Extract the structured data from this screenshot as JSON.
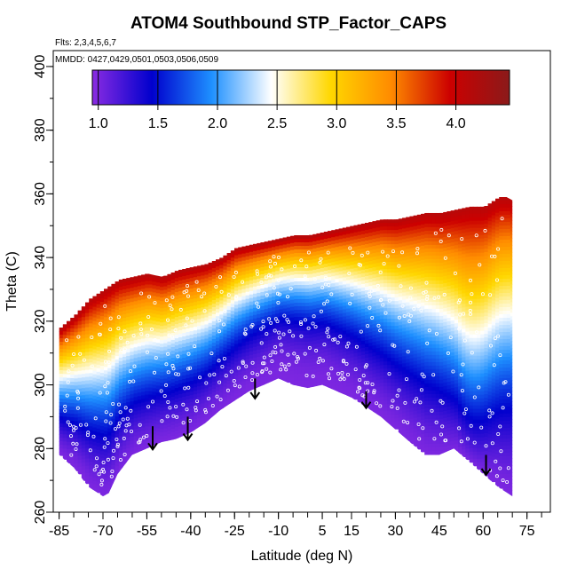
{
  "chart_data": {
    "type": "heatmap",
    "title": "ATOM4 Southbound STP_Factor_CAPS",
    "subtitle_flights": "Flts: 2,3,4,5,6,7",
    "subtitle_dates": "MMDD: 0427,0429,0501,0503,0506,0509",
    "xlabel": "Latitude (deg N)",
    "ylabel": "Theta (C)",
    "xlim": [
      -87,
      83
    ],
    "ylim": [
      260,
      405
    ],
    "x_ticks": [
      -85,
      -70,
      -55,
      -40,
      -25,
      -10,
      5,
      15,
      30,
      45,
      60,
      75
    ],
    "x_tick_labels": [
      "-85",
      "-70",
      "-55",
      "-40",
      "-25",
      "-10",
      "5",
      "15",
      "30",
      "45",
      "60",
      "75"
    ],
    "y_ticks": [
      260,
      280,
      300,
      320,
      340,
      360,
      380,
      400
    ],
    "y_tick_labels": [
      "260",
      "280",
      "300",
      "320",
      "340",
      "360",
      "380",
      "400"
    ],
    "colorbar": {
      "range": [
        0.95,
        4.45
      ],
      "tick_values": [
        1.0,
        1.5,
        2.0,
        2.5,
        3.0,
        3.5,
        4.0
      ],
      "tick_labels": [
        "1.0",
        "1.5",
        "2.0",
        "2.5",
        "3.0",
        "3.5",
        "4.0"
      ],
      "colors": [
        "#8a2be2",
        "#0000cd",
        "#1e90ff",
        "#ffffff",
        "#ffd700",
        "#ff8c00",
        "#cc0000",
        "#8b1a1a"
      ]
    },
    "field_bottom_boundary": {
      "lat": [
        -85,
        -80,
        -75,
        -70,
        -68,
        -65,
        -60,
        -55,
        -50,
        -45,
        -40,
        -35,
        -30,
        -25,
        -20,
        -15,
        -10,
        -5,
        0,
        5,
        10,
        15,
        20,
        25,
        30,
        35,
        40,
        45,
        50,
        55,
        60,
        65,
        70,
        72
      ],
      "theta": [
        278,
        274,
        268,
        265,
        266,
        272,
        278,
        280,
        282,
        283,
        285,
        288,
        292,
        295,
        298,
        300,
        302,
        300,
        299,
        300,
        298,
        296,
        293,
        290,
        286,
        282,
        278,
        278,
        280,
        276,
        272,
        268,
        265,
        264
      ]
    },
    "field_top_boundary": {
      "lat": [
        -85,
        -80,
        -75,
        -70,
        -65,
        -60,
        -55,
        -50,
        -45,
        -40,
        -35,
        -30,
        -25,
        -20,
        -15,
        -10,
        -5,
        0,
        5,
        10,
        15,
        20,
        25,
        30,
        35,
        40,
        45,
        50,
        55,
        60,
        65,
        68,
        70
      ],
      "theta": [
        318,
        322,
        327,
        330,
        333,
        334,
        335,
        334,
        336,
        337,
        338,
        340,
        343,
        344,
        345,
        346,
        347,
        347,
        348,
        349,
        350,
        351,
        352,
        352,
        353,
        354,
        354,
        355,
        356,
        356,
        359,
        359,
        358
      ]
    },
    "field_model": {
      "bottom_value": 1.0,
      "top_value": 4.1,
      "shape_exponent": 1.6,
      "midlatitude_uplift_center_lat": -5,
      "midlatitude_uplift_width": 22,
      "arctic_dip_center_lat": 55,
      "arctic_dip_width": 9
    },
    "tropopause_arrows": [
      {
        "lat": -53,
        "theta_top": 287,
        "theta_bottom": 280
      },
      {
        "lat": -41,
        "theta_top": 290,
        "theta_bottom": 283
      },
      {
        "lat": -18,
        "theta_top": 302,
        "theta_bottom": 296
      },
      {
        "lat": 20,
        "theta_top": 298,
        "theta_bottom": 293
      },
      {
        "lat": 61,
        "theta_top": 278,
        "theta_bottom": 272
      }
    ]
  }
}
